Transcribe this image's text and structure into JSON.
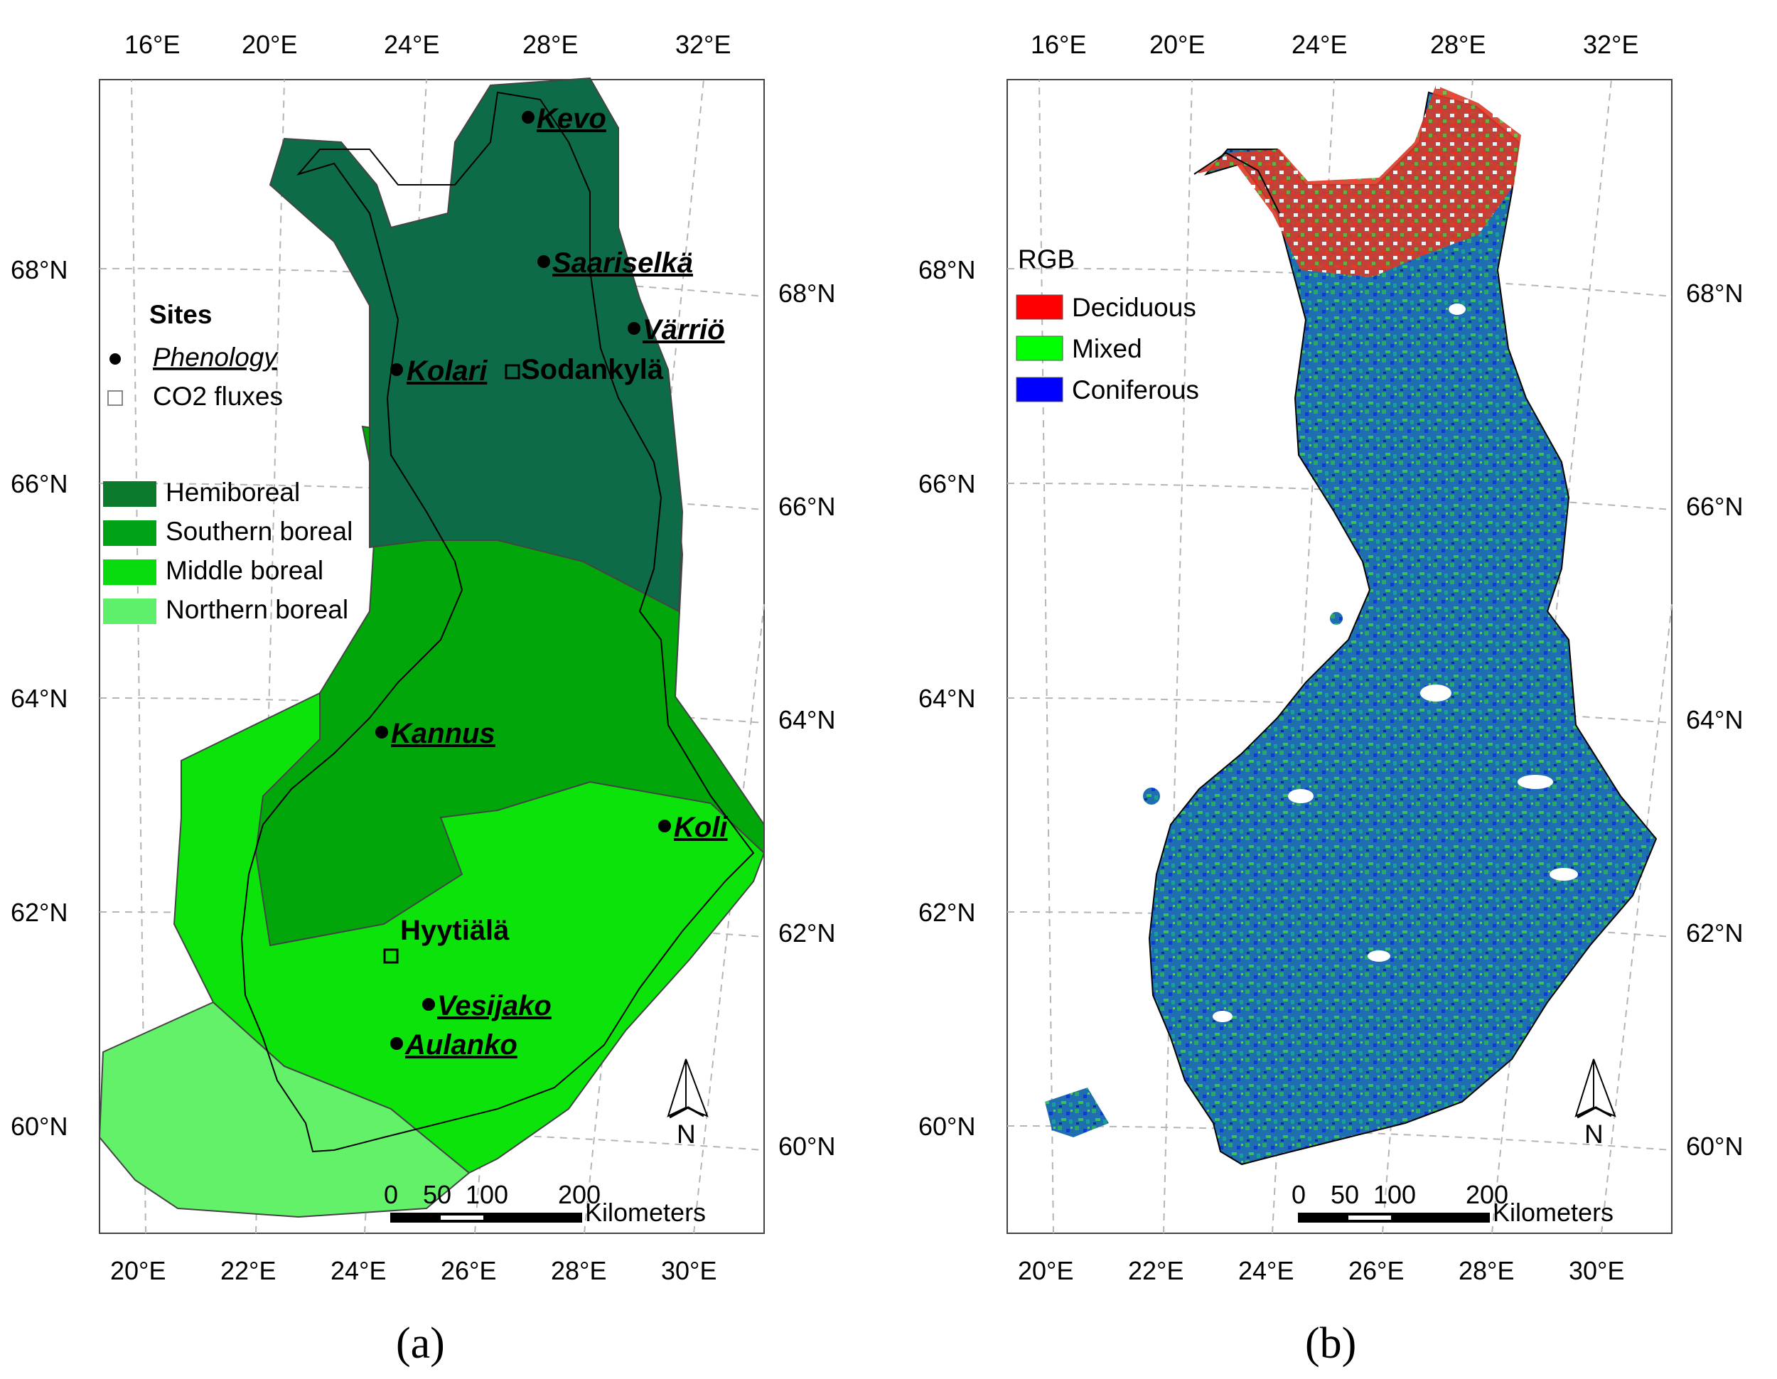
{
  "panel_a": {
    "caption": "(a)",
    "top_ticks": [
      "16°E",
      "20°E",
      "24°E",
      "28°E",
      "32°E"
    ],
    "bottom_ticks": [
      "20°E",
      "22°E",
      "24°E",
      "26°E",
      "28°E",
      "30°E"
    ],
    "left_ticks": [
      "68°N",
      "66°N",
      "64°N",
      "62°N",
      "60°N"
    ],
    "right_ticks": [
      "68°N",
      "66°N",
      "64°N",
      "62°N",
      "60°N"
    ],
    "sites_title": "Sites",
    "legend_phenology": "Phenology",
    "legend_co2": "CO2 fluxes",
    "zones": [
      {
        "label": "Hemiboreal",
        "color": "#0b7a2c"
      },
      {
        "label": "Southern boreal",
        "color": "#00a316"
      },
      {
        "label": "Middle boreal",
        "color": "#08dc0e"
      },
      {
        "label": "Northern boreal",
        "color": "#5ef06a"
      }
    ],
    "phenology_sites": [
      "Kevo",
      "Saariselkä",
      "Värriö",
      "Kolari",
      "Kannus",
      "Koli",
      "Vesijako",
      "Aulanko"
    ],
    "flux_sites": [
      "Sodankylä",
      "Hyytiälä"
    ],
    "north_label": "N",
    "scale_labels": [
      "0",
      "50",
      "100",
      "200"
    ],
    "scale_unit": "Kilometers"
  },
  "panel_b": {
    "caption": "(b)",
    "top_ticks": [
      "16°E",
      "20°E",
      "24°E",
      "28°E",
      "32°E"
    ],
    "bottom_ticks": [
      "20°E",
      "22°E",
      "24°E",
      "26°E",
      "28°E",
      "30°E"
    ],
    "left_ticks": [
      "68°N",
      "66°N",
      "64°N",
      "62°N",
      "60°N"
    ],
    "right_ticks": [
      "68°N",
      "66°N",
      "64°N",
      "62°N",
      "60°N"
    ],
    "legend_title": "RGB",
    "legend_items": [
      {
        "label": "Deciduous",
        "color": "#ff0000"
      },
      {
        "label": "Mixed",
        "color": "#00ff00"
      },
      {
        "label": "Coniferous",
        "color": "#0000ff"
      }
    ],
    "north_label": "N",
    "scale_labels": [
      "0",
      "50",
      "100",
      "200"
    ],
    "scale_unit": "Kilometers"
  },
  "colors": {
    "dark_zone": "#0d6b47",
    "southern_zone": "#00a60a",
    "middle_zone": "#0be30b",
    "northern_zone": "#63f16a"
  }
}
